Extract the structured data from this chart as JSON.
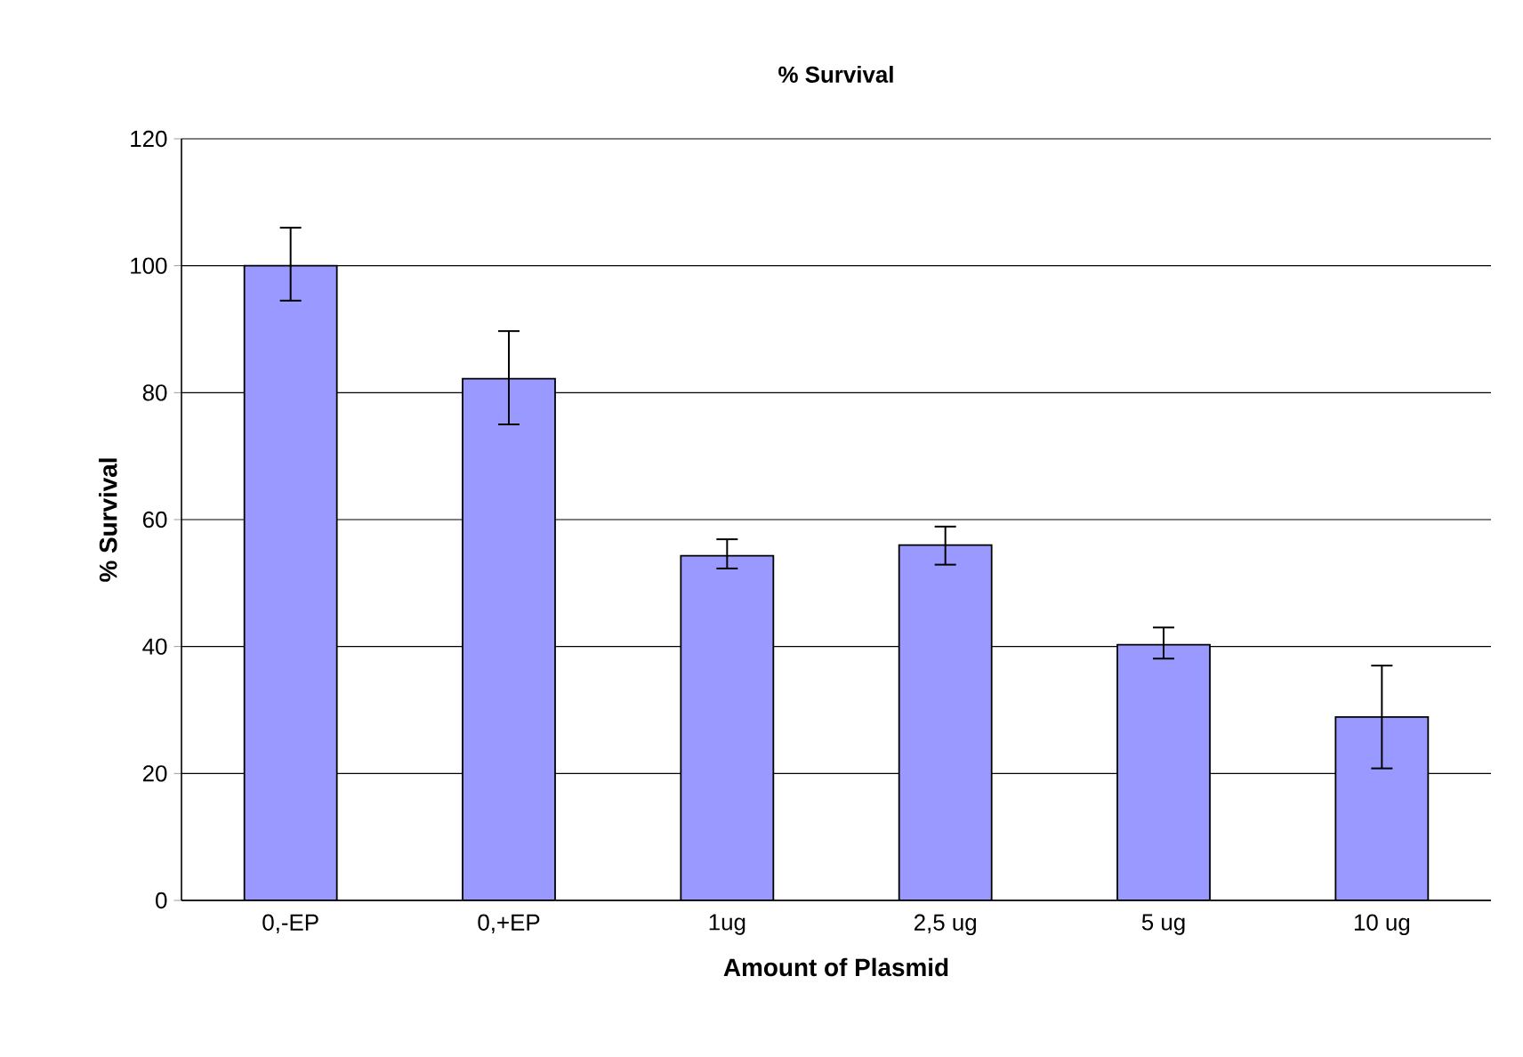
{
  "chart_data": {
    "type": "bar",
    "title": "% Survival",
    "xlabel": "Amount of Plasmid",
    "ylabel": "% Survival",
    "categories": [
      "0,-EP",
      "0,+EP",
      "1ug",
      "2,5 ug",
      "5 ug",
      "10 ug"
    ],
    "values": [
      100,
      82.2,
      54.3,
      56,
      40.3,
      28.9
    ],
    "errors": [
      [
        94.5,
        106
      ],
      [
        75,
        89.7
      ],
      [
        52.3,
        56.9
      ],
      [
        52.9,
        58.9
      ],
      [
        38.1,
        43
      ],
      [
        20.8,
        37
      ]
    ],
    "color": "#9999ff",
    "ylim": [
      0,
      120
    ],
    "yticks": [
      0,
      20,
      40,
      60,
      80,
      100,
      120
    ],
    "grid": "y"
  }
}
